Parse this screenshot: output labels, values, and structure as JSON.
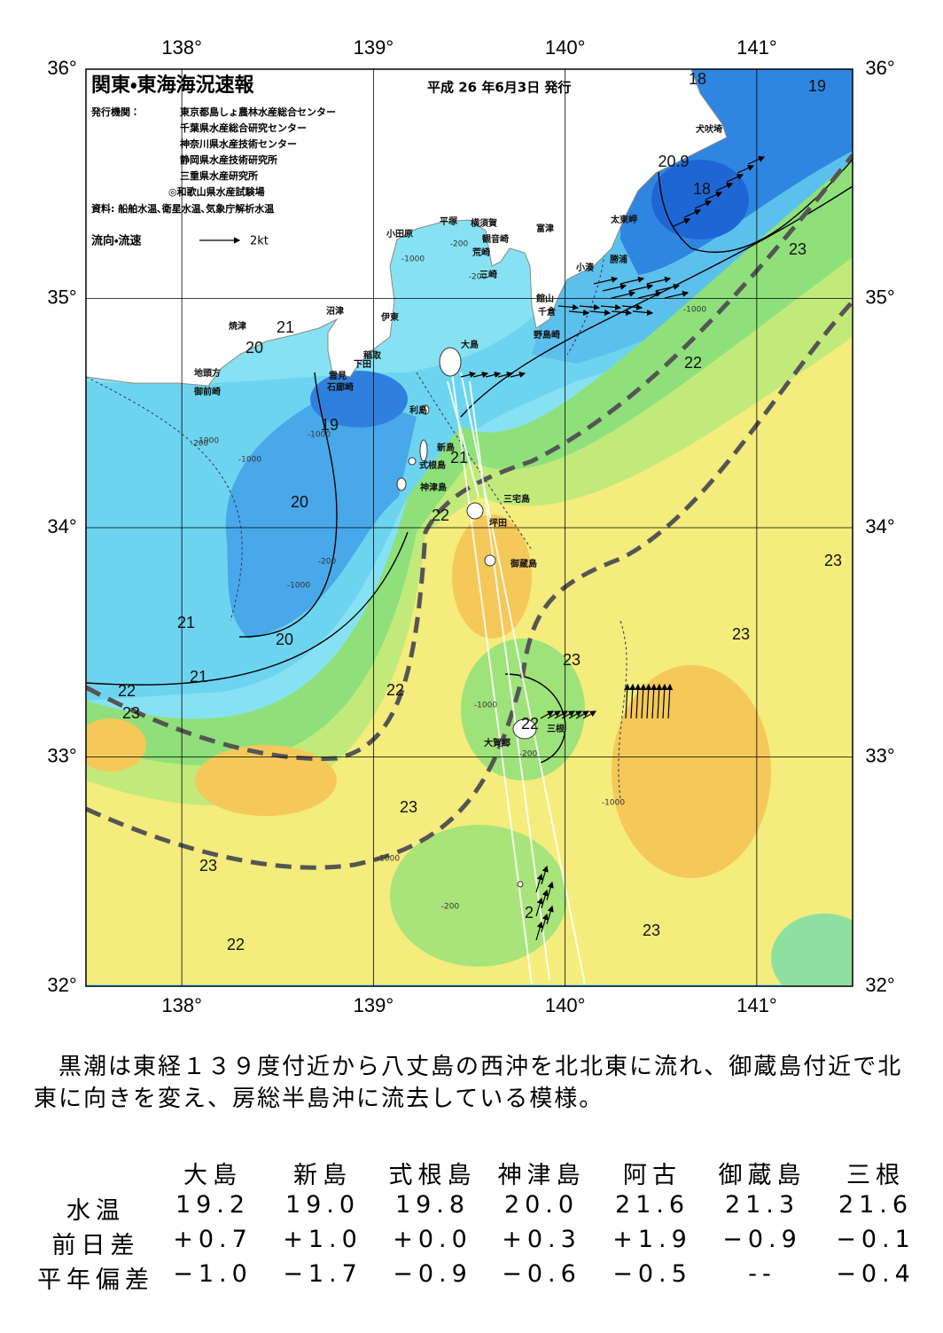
{
  "map": {
    "title": "関東・東海海況速報",
    "date": "平成 26 年6月3日 発行",
    "publisher_label": "発行機関：",
    "publishers": [
      "東京都島しょ農林水産総合センター",
      "千葉県水産総合研究センター",
      "神奈川県水産技術センター",
      "静岡県水産技術研究所",
      "三重県水産研究所",
      "◎和歌山県水産試験場"
    ],
    "source": "資料: 船舶水温､衛星水温､気象庁解析水温",
    "legend_label": "流向・流速",
    "legend_scale": "2kt",
    "lonlim": [
      137.5,
      141.5
    ],
    "latlim": [
      32,
      36
    ],
    "lon_ticks": [
      {
        "value": 138,
        "label": "138°"
      },
      {
        "value": 139,
        "label": "139°"
      },
      {
        "value": 140,
        "label": "140°"
      },
      {
        "value": 141,
        "label": "141°"
      }
    ],
    "lat_ticks": [
      {
        "value": 32,
        "label": "32°"
      },
      {
        "value": 33,
        "label": "33°"
      },
      {
        "value": 34,
        "label": "34°"
      },
      {
        "value": 35,
        "label": "35°"
      },
      {
        "value": 36,
        "label": "36°"
      }
    ],
    "place_names": [
      "犬吠埼",
      "太東岬",
      "勝浦",
      "小湊",
      "富津",
      "館山",
      "千倉",
      "野島崎",
      "横須賀",
      "観音崎",
      "荒崎",
      "三崎",
      "平塚",
      "小田原",
      "沼津",
      "伊東",
      "焼津",
      "稲取",
      "下田",
      "雲見",
      "石廊崎",
      "地頭方",
      "御前崎",
      "大島",
      "利島",
      "新島",
      "式根島",
      "神津島",
      "三宅島",
      "坪田",
      "御蔵島",
      "三根",
      "大賀郷"
    ],
    "temperature_labels": [
      18,
      19,
      20.9,
      18,
      23,
      22,
      21,
      20,
      19,
      20,
      21,
      22,
      23,
      23,
      23,
      21,
      20,
      21,
      22,
      22,
      23,
      22,
      23,
      23,
      23,
      22,
      2
    ],
    "depth_labels": [
      "-200",
      "-1000",
      "-200",
      "-1000",
      "-1000",
      "-200",
      "-1000",
      "-1000",
      "-200",
      "-1000",
      "-200",
      "-1000",
      "-1000",
      "-1000",
      "-200"
    ]
  },
  "summary": "黒潮は東経１３９度付近から八丈島の西沖を北北東に流れ、御蔵島付近で北東に向きを変え、房総半島沖に流去している模様。",
  "table": {
    "columns": [
      "大島",
      "新島",
      "式根島",
      "神津島",
      "阿古",
      "御蔵島",
      "三根"
    ],
    "rows": [
      {
        "label": "水温",
        "values": [
          "19.2",
          "19.0",
          "19.8",
          "20.0",
          "21.6",
          "21.3",
          "21.6"
        ]
      },
      {
        "label": "前日差",
        "values": [
          "+0.7",
          "+1.0",
          "+0.0",
          "+0.3",
          "+1.9",
          "−0.9",
          "−0.1"
        ]
      },
      {
        "label": "平年偏差",
        "values": [
          "−1.0",
          "−1.7",
          "−0.9",
          "−0.6",
          "−0.5",
          "--",
          "−0.4"
        ]
      }
    ]
  }
}
